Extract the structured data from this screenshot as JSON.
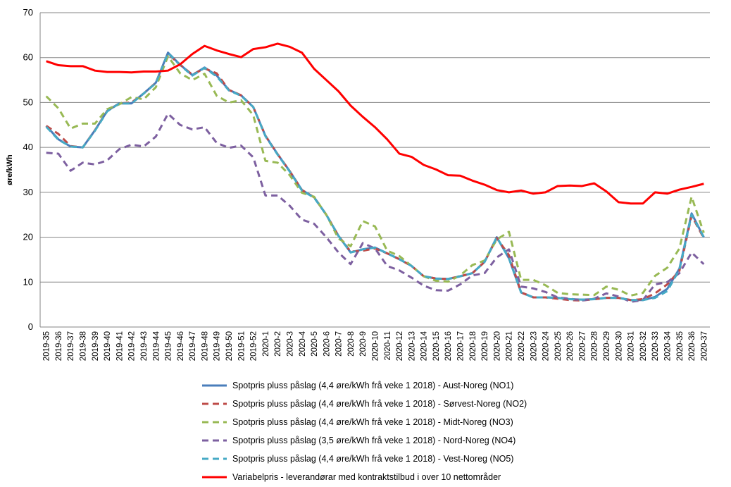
{
  "chart_data": {
    "type": "line",
    "y_label": "øre/kWh",
    "categories": [
      "2019-35",
      "2019-36",
      "2019-37",
      "2019-38",
      "2019-39",
      "2019-40",
      "2019-41",
      "2019-42",
      "2019-43",
      "2019-44",
      "2019-45",
      "2019-46",
      "2019-47",
      "2019-48",
      "2019-49",
      "2019-50",
      "2019-51",
      "2019-52",
      "2020-1",
      "2020-2",
      "2020-3",
      "2020-4",
      "2020-5",
      "2020-6",
      "2020-7",
      "2020-8",
      "2020-9",
      "2020-10",
      "2020-11",
      "2020-12",
      "2020-13",
      "2020-14",
      "2020-15",
      "2020-16",
      "2020-17",
      "2020-18",
      "2020-19",
      "2020-20",
      "2020-21",
      "2020-22",
      "2020-23",
      "2020-24",
      "2020-25",
      "2020-26",
      "2020-27",
      "2020-28",
      "2020-29",
      "2020-30",
      "2020-31",
      "2020-32",
      "2020-33",
      "2020-34",
      "2020-35",
      "2020-36",
      "2020-37"
    ],
    "ylim": [
      0,
      70
    ],
    "yticks": [
      0,
      10,
      20,
      30,
      40,
      50,
      60,
      70
    ],
    "grid": true,
    "series": [
      {
        "name": "Spotpris pluss påslag (4,4 øre/kWh frå veke 1 2018) - Aust-Noreg (NO1)",
        "color": "#4a7ebb",
        "dashed": false,
        "values": [
          44.8,
          41.8,
          40.2,
          40,
          43.8,
          48.1,
          49.8,
          49.8,
          52,
          54.4,
          61.1,
          58.4,
          56.1,
          57.8,
          56,
          52.8,
          51.6,
          49,
          42.6,
          38.5,
          34.7,
          30.5,
          28.9,
          25,
          20.3,
          16.6,
          17.3,
          17.7,
          16.4,
          15.1,
          13.6,
          11.3,
          10.8,
          10.7,
          11.3,
          12,
          14.5,
          20,
          15.3,
          7.7,
          6.6,
          6.6,
          6.5,
          6.2,
          6.1,
          6.2,
          6.5,
          6.5,
          6,
          6,
          6.7,
          8.5,
          13,
          25.3,
          20
        ]
      },
      {
        "name": "Spotpris pluss påslag (4,4 øre/kWh frå veke 1 2018) - Sørvest-Noreg (NO2)",
        "color": "#be4b48",
        "dashed": true,
        "values": [
          44.8,
          43,
          40.3,
          40,
          43.8,
          48.1,
          49.8,
          50,
          52,
          54.4,
          60.8,
          58.4,
          56.2,
          57.6,
          56.5,
          52.8,
          51.6,
          49,
          42.6,
          38.5,
          34.7,
          30.5,
          28.9,
          25,
          20.3,
          16.8,
          17,
          17.5,
          16.4,
          15.1,
          13.6,
          11.3,
          10.8,
          10.7,
          11.3,
          12,
          14.5,
          19.8,
          16,
          7.7,
          6.6,
          6.6,
          6.3,
          6,
          5.9,
          6.2,
          6.5,
          6.5,
          6,
          6.2,
          7.5,
          9.5,
          12.5,
          24.8,
          19.8
        ]
      },
      {
        "name": "Spotpris pluss påslag (4,4 øre/kWh frå veke 1 2018) - Midt-Noreg (NO3)",
        "color": "#98b954",
        "dashed": true,
        "values": [
          51.4,
          48.7,
          44.2,
          45.3,
          45.3,
          48.5,
          49.6,
          51.2,
          50.7,
          53.4,
          60.3,
          56.5,
          55,
          56.4,
          51.5,
          50,
          50.5,
          47.2,
          37,
          36.6,
          33.8,
          29.9,
          29,
          25,
          19.7,
          18,
          23.6,
          22.4,
          17,
          15.8,
          13.6,
          11.3,
          10.3,
          10.1,
          11.5,
          13.8,
          14.8,
          19.5,
          21.2,
          10.5,
          10.5,
          9.3,
          7.6,
          7.3,
          7.2,
          7.1,
          9,
          8.3,
          7,
          7.6,
          11.4,
          13.2,
          17.5,
          29,
          21
        ]
      },
      {
        "name": "Spotpris pluss påslag (3,5 øre/kWh frå veke 1 2018) - Nord-Noreg (NO4)",
        "color": "#7d60a0",
        "dashed": true,
        "values": [
          38.8,
          38.6,
          34.8,
          36.6,
          36.2,
          37.1,
          39.6,
          40.6,
          40.2,
          42.4,
          47.5,
          45,
          44,
          44.5,
          41,
          39.9,
          40.4,
          37.8,
          29.3,
          29.3,
          27,
          23.9,
          23,
          20,
          16.6,
          14,
          18.7,
          17.5,
          13.6,
          12.6,
          11,
          9.2,
          8.2,
          8.1,
          9.5,
          11.5,
          12,
          15.5,
          17.3,
          9,
          8.6,
          7.8,
          6.6,
          6.3,
          5.9,
          6.3,
          7.5,
          6.8,
          5.6,
          6,
          9.5,
          10,
          12,
          16.6,
          14
        ]
      },
      {
        "name": "Spotpris pluss påslag (4,4 øre/kWh frå veke 1 2018) - Vest-Noreg (NO5)",
        "color": "#46aac5",
        "dashed": true,
        "values": [
          44.6,
          41.7,
          40.2,
          40,
          43.7,
          48,
          49.8,
          49.8,
          52,
          54.3,
          61,
          58.3,
          56,
          57.7,
          55.8,
          52.7,
          51.5,
          49,
          42.5,
          38.4,
          34.6,
          30.4,
          28.8,
          25,
          20.3,
          16.6,
          17.3,
          17.7,
          16.4,
          15.1,
          13.6,
          11.3,
          10.8,
          10.7,
          11.3,
          12,
          14.5,
          20,
          15.3,
          7.7,
          6.6,
          6.6,
          6.5,
          6.2,
          6.1,
          6.2,
          6.5,
          6.5,
          6,
          6,
          6.5,
          8,
          12.8,
          25,
          20
        ]
      },
      {
        "name": "Variabelpris - leverandørar med kontraktstilbud i over 10 nettområder",
        "color": "#ff0000",
        "dashed": false,
        "values": [
          59.2,
          58.3,
          58.1,
          58.1,
          57.1,
          56.8,
          56.8,
          56.7,
          56.9,
          56.9,
          57.1,
          58.5,
          60.8,
          62.6,
          61.6,
          60.8,
          60.1,
          61.9,
          62.3,
          63.1,
          62.4,
          61.1,
          57.5,
          55,
          52.5,
          49.3,
          46.8,
          44.5,
          41.8,
          38.6,
          37.9,
          36.1,
          35.1,
          33.8,
          33.7,
          32.6,
          31.7,
          30.5,
          30,
          30.4,
          29.7,
          30,
          31.4,
          31.5,
          31.4,
          32,
          30.2,
          27.8,
          27.5,
          27.5,
          30,
          29.7,
          30.6,
          31.2,
          31.9
        ]
      }
    ]
  }
}
